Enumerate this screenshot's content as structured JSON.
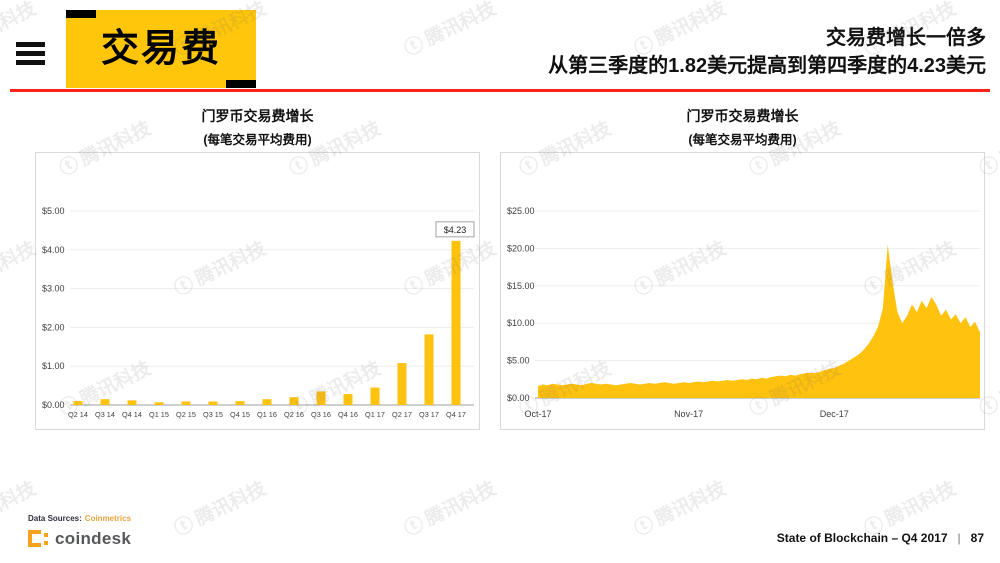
{
  "header": {
    "title": "交易费",
    "headline_line1": "交易费增长一倍多",
    "headline_line2": "从第三季度的1.82美元提高到第四季度的4.23美元"
  },
  "watermark": {
    "icon": "ⓣ",
    "text": "腾讯科技"
  },
  "chart_data": [
    {
      "type": "bar",
      "title": "门罗币交易费增长",
      "subtitle": "(每笔交易平均费用)",
      "categories": [
        "Q2 14",
        "Q3 14",
        "Q4 14",
        "Q1 15",
        "Q2 15",
        "Q3 15",
        "Q4 15",
        "Q1 16",
        "Q2 16",
        "Q3 16",
        "Q4 16",
        "Q1 17",
        "Q2 17",
        "Q3 17",
        "Q4 17"
      ],
      "values": [
        0.1,
        0.15,
        0.12,
        0.07,
        0.09,
        0.09,
        0.1,
        0.15,
        0.2,
        0.35,
        0.28,
        0.45,
        1.08,
        1.82,
        4.23
      ],
      "ylim": [
        0,
        5
      ],
      "yticks": [
        "$0.00",
        "$1.00",
        "$2.00",
        "$3.00",
        "$4.00",
        "$5.00"
      ],
      "annotation": {
        "index": 14,
        "label": "$4.23"
      },
      "bar_color": "#FFC20E",
      "grid": true,
      "legend": "none"
    },
    {
      "type": "area",
      "title": "门罗币交易费增长",
      "subtitle": "(每笔交易平均费用)",
      "x_ticks": [
        "Oct-17",
        "Nov-17",
        "Dec-17"
      ],
      "x_tick_days": [
        0,
        31,
        61
      ],
      "ylim": [
        0,
        25
      ],
      "yticks": [
        "$0.00",
        "$5.00",
        "$10.00",
        "$15.00",
        "$20.00",
        "$25.00"
      ],
      "values": [
        1.6,
        1.8,
        1.7,
        1.9,
        1.8,
        1.7,
        1.8,
        1.9,
        1.8,
        1.7,
        1.9,
        2.0,
        1.9,
        1.8,
        1.9,
        1.8,
        1.7,
        1.8,
        1.9,
        2.0,
        1.9,
        1.8,
        1.9,
        2.0,
        1.9,
        2.0,
        2.1,
        2.0,
        1.9,
        2.0,
        2.1,
        2.0,
        2.1,
        2.2,
        2.1,
        2.2,
        2.3,
        2.2,
        2.3,
        2.4,
        2.3,
        2.4,
        2.5,
        2.4,
        2.6,
        2.5,
        2.7,
        2.6,
        2.8,
        2.9,
        3.0,
        2.9,
        3.1,
        3.0,
        3.2,
        3.3,
        3.4,
        3.3,
        3.5,
        3.7,
        3.9,
        4.0,
        4.3,
        4.6,
        5.0,
        5.4,
        5.8,
        6.4,
        7.2,
        8.2,
        9.5,
        12.0,
        20.5,
        15.5,
        11.5,
        10.0,
        11.0,
        12.5,
        11.5,
        13.0,
        12.0,
        13.5,
        12.5,
        11.0,
        11.8,
        10.5,
        11.2,
        10.0,
        10.8,
        9.5,
        10.2,
        8.8
      ],
      "area_color": "#FFC20E",
      "grid": true,
      "legend": "none"
    }
  ],
  "footer": {
    "data_sources_label": "Data Sources:",
    "data_sources_link": "Coinmetrics",
    "logo_text": "coindesk",
    "report_title": "State of Blockchain – Q4 2017",
    "separator": "|",
    "page_number": "87"
  },
  "colors": {
    "accent_yellow": "#FFC20E",
    "title_box_yellow": "#FFC60B",
    "header_red": "#FB2318",
    "link_orange": "#E8A33D",
    "logo_orange": "#F5A31C"
  }
}
